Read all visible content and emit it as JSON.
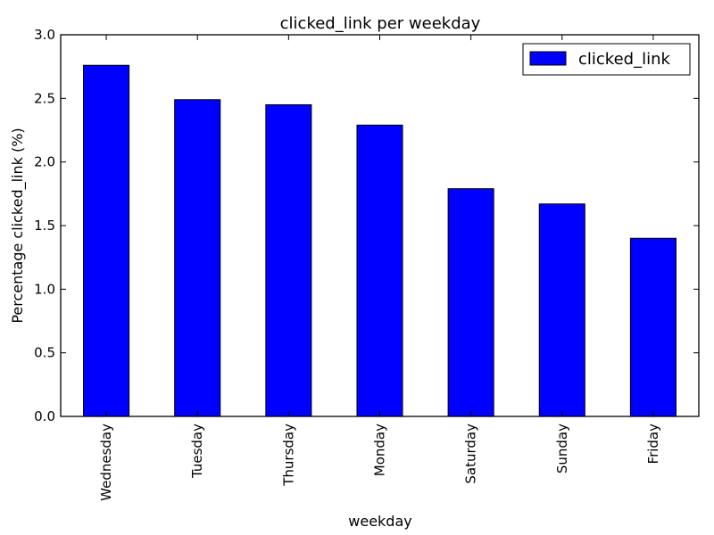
{
  "chart_data": {
    "type": "bar",
    "title": "clicked_link per weekday",
    "xlabel": "weekday",
    "ylabel": "Percentage clicked_link (%)",
    "categories": [
      "Wednesday",
      "Tuesday",
      "Thursday",
      "Monday",
      "Saturday",
      "Sunday",
      "Friday"
    ],
    "series": [
      {
        "name": "clicked_link",
        "color": "#0000ff",
        "values": [
          2.76,
          2.49,
          2.45,
          2.29,
          1.79,
          1.67,
          1.4
        ]
      }
    ],
    "ylim": [
      0,
      3.0
    ],
    "yticks": [
      "0.0",
      "0.5",
      "1.0",
      "1.5",
      "2.0",
      "2.5",
      "3.0"
    ],
    "grid": false,
    "legend_position": "top-right"
  }
}
